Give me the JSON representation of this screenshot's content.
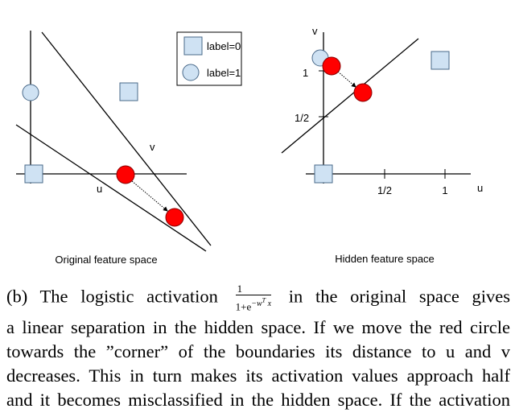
{
  "left_panel": {
    "title": "Original feature space",
    "axis_u": "u",
    "axis_v": "v",
    "legend": [
      {
        "marker": "square",
        "label": "label=0"
      },
      {
        "marker": "circle",
        "label": "label=1"
      }
    ]
  },
  "right_panel": {
    "title": "Hidden feature space",
    "axis_u": "u",
    "axis_v": "v",
    "y_ticks": [
      "1/2",
      "1"
    ],
    "x_ticks": [
      "1/2",
      "1"
    ]
  },
  "colors": {
    "class0": "#cfe2f3",
    "class1_light": "#cfe2f3",
    "moved_point": "#ff0000",
    "marker_stroke": "#4a6a8a"
  },
  "caption": {
    "prefix": "(b) The logistic activation",
    "formula_num": "1",
    "formula_den": "1+e",
    "formula_exp": "−w",
    "formula_exp_sup": "T",
    "formula_exp_var": "x",
    "line1_rest": "in the original space gives",
    "lines": [
      "a linear separation in the hidden space. If we move the red circle",
      "towards the ”corner” of the boundaries its distance to u and v",
      "decreases. This in turn makes its activation values approach half",
      "and it becomes misclassified in the hidden space. If the activation"
    ]
  }
}
